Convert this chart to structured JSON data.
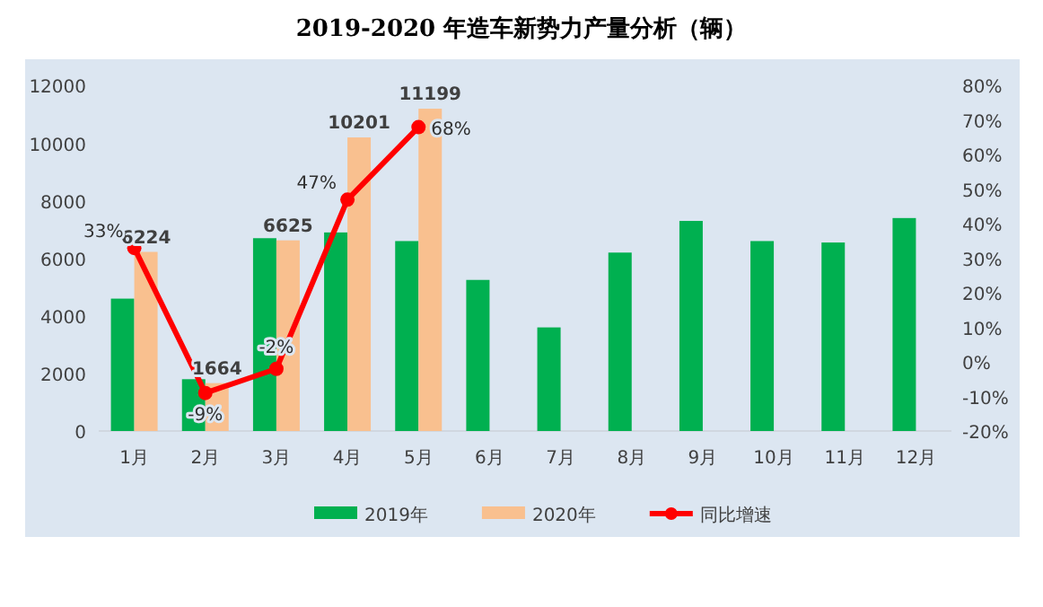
{
  "chart_data": {
    "type": "bar",
    "title": "2019-2020 年造车新势力产量分析（辆）",
    "categories": [
      "1月",
      "2月",
      "3月",
      "4月",
      "5月",
      "6月",
      "7月",
      "8月",
      "9月",
      "10月",
      "11月",
      "12月"
    ],
    "series": [
      {
        "name": "2019年",
        "color": "#00b050",
        "values": [
          4600,
          1800,
          6700,
          6900,
          6600,
          5250,
          3600,
          6200,
          7300,
          6600,
          6550,
          7400
        ]
      },
      {
        "name": "2020年",
        "color": "#f9c08f",
        "values": [
          6224,
          1664,
          6625,
          10201,
          11199,
          null,
          null,
          null,
          null,
          null,
          null,
          null
        ],
        "value_labels": [
          "6224",
          "1664",
          "6625",
          "10201",
          "11199",
          null,
          null,
          null,
          null,
          null,
          null,
          null
        ]
      },
      {
        "name": "同比增速",
        "type": "line",
        "axis": "y2",
        "color": "#ff0000",
        "values": [
          33,
          -9,
          -2,
          47,
          68,
          null,
          null,
          null,
          null,
          null,
          null,
          null
        ],
        "value_labels": [
          "33%",
          "-9%",
          "-2%",
          "47%",
          "68%",
          null,
          null,
          null,
          null,
          null,
          null,
          null
        ]
      }
    ],
    "ylim": [
      0,
      12000
    ],
    "yticks": [
      0,
      2000,
      4000,
      6000,
      8000,
      10000,
      12000
    ],
    "y2lim": [
      -20,
      80
    ],
    "y2ticks": [
      {
        "value": -20,
        "label": "-20%"
      },
      {
        "value": -10,
        "label": "-10%"
      },
      {
        "value": 0,
        "label": "0%"
      },
      {
        "value": 10,
        "label": "10%"
      },
      {
        "value": 20,
        "label": "20%"
      },
      {
        "value": 30,
        "label": "30%"
      },
      {
        "value": 40,
        "label": "40%"
      },
      {
        "value": 50,
        "label": "50%"
      },
      {
        "value": 60,
        "label": "60%"
      },
      {
        "value": 70,
        "label": "70%"
      },
      {
        "value": 80,
        "label": "80%"
      }
    ],
    "marker": "circle",
    "legend": "bottom",
    "grid": false
  }
}
